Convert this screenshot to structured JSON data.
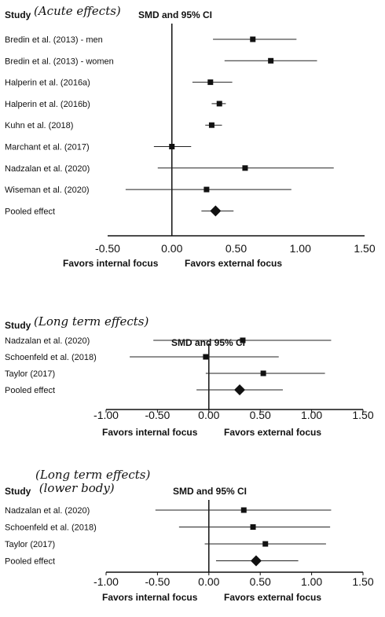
{
  "chart_data": [
    {
      "type": "forest",
      "header_study": "Study",
      "header_note": "(Acute effects)",
      "header_ci": "SMD and 95% CI",
      "xlim": [
        -0.5,
        1.5
      ],
      "ticks": [
        "-0.50",
        "0.00",
        "0.50",
        "1.00",
        "1.50"
      ],
      "xlabel_left": "Favors internal focus",
      "xlabel_right": "Favors external focus",
      "studies": [
        {
          "label": "Bredin et al. (2013) - men",
          "smd": 0.63,
          "lo": 0.32,
          "hi": 0.97
        },
        {
          "label": "Bredin et al. (2013) - women",
          "smd": 0.77,
          "lo": 0.41,
          "hi": 1.13
        },
        {
          "label": "Halperin et al. (2016a)",
          "smd": 0.3,
          "lo": 0.16,
          "hi": 0.47
        },
        {
          "label": "Halperin et al. (2016b)",
          "smd": 0.37,
          "lo": 0.31,
          "hi": 0.42
        },
        {
          "label": "Kuhn et al. (2018)",
          "smd": 0.31,
          "lo": 0.26,
          "hi": 0.39
        },
        {
          "label": "Marchant et al. (2017)",
          "smd": 0.0,
          "lo": -0.14,
          "hi": 0.15
        },
        {
          "label": "Nadzalan et al. (2020)",
          "smd": 0.57,
          "lo": -0.11,
          "hi": 1.26
        },
        {
          "label": "Wiseman et al. (2020)",
          "smd": 0.27,
          "lo": -0.36,
          "hi": 0.93
        }
      ],
      "pooled": {
        "label": "Pooled effect",
        "smd": 0.34,
        "lo": 0.23,
        "hi": 0.48
      }
    },
    {
      "type": "forest",
      "header_study": "Study",
      "header_note": "(Long term effects)",
      "header_ci": "SMD and 95% CI",
      "xlim": [
        -1.0,
        1.5
      ],
      "ticks": [
        "-1.00",
        "-0.50",
        "0.00",
        "0.50",
        "1.00",
        "1.50"
      ],
      "xlabel_left": "Favors internal focus",
      "xlabel_right": "Favors external focus",
      "studies": [
        {
          "label": "Nadzalan et al. (2020)",
          "smd": 0.33,
          "lo": -0.54,
          "hi": 1.19
        },
        {
          "label": "Schoenfeld et al. (2018)",
          "smd": -0.03,
          "lo": -0.77,
          "hi": 0.68
        },
        {
          "label": "Taylor (2017)",
          "smd": 0.53,
          "lo": -0.03,
          "hi": 1.13
        }
      ],
      "pooled": {
        "label": "Pooled effect",
        "smd": 0.3,
        "lo": -0.12,
        "hi": 0.72
      }
    },
    {
      "type": "forest",
      "header_study": "Study",
      "header_note": "(Long term effects)\n (lower body)",
      "header_ci": "SMD and 95% CI",
      "xlim": [
        -1.0,
        1.5
      ],
      "ticks": [
        "-1.00",
        "-0.50",
        "0.00",
        "0.50",
        "1.00",
        "1.50"
      ],
      "xlabel_left": "Favors internal focus",
      "xlabel_right": "Favors external focus",
      "studies": [
        {
          "label": "Nadzalan et al. (2020)",
          "smd": 0.34,
          "lo": -0.52,
          "hi": 1.19
        },
        {
          "label": "Schoenfeld et al. (2018)",
          "smd": 0.43,
          "lo": -0.29,
          "hi": 1.18
        },
        {
          "label": "Taylor (2017)",
          "smd": 0.55,
          "lo": -0.04,
          "hi": 1.14
        }
      ],
      "pooled": {
        "label": "Pooled effect",
        "smd": 0.46,
        "lo": 0.07,
        "hi": 0.87
      }
    }
  ]
}
